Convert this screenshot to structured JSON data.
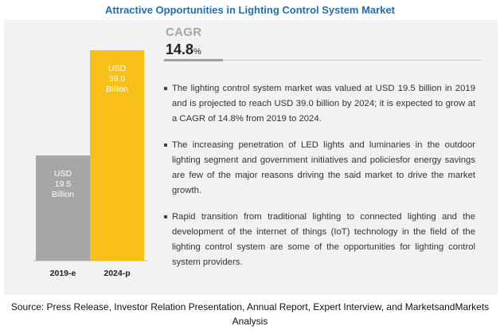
{
  "title": "Attractive Opportunities in Lighting Control System Market",
  "cagr": {
    "label": "CAGR",
    "value": "14.8",
    "unit": "%"
  },
  "bullets": [
    "The lighting control system market was valued at USD 19.5 billion in 2019 and is projected to reach USD 39.0 billion by 2024; it is expected to grow at a CAGR of 14.8% from 2019 to 2024.",
    "The increasing penetration of  LED lights and luminaries in the outdoor lighting segment and government initiatives and policiesfor energy savings are few of the major reasons driving the said market to drive the market growth.",
    "Rapid transition from traditional lighting to connected lighting and the development of the internet of things (IoT) technology in the field of the lighting control system are some of the opportunities for lighting control system providers."
  ],
  "source": "Source: Press Release, Investor Relation Presentation, Annual Report, Expert Interview, and MarketsandMarkets Analysis",
  "colors": {
    "title": "#1f6fb5",
    "bar_2019": "#a6a6a6",
    "bar_2024": "#f9c01a"
  },
  "chart_data": {
    "type": "bar",
    "categories": [
      "2019-e",
      "2024-p"
    ],
    "values": [
      19.5,
      39.0
    ],
    "data_labels": [
      [
        "USD",
        "19.5",
        "Billion"
      ],
      [
        "USD",
        "39.0",
        "Billion"
      ]
    ],
    "bar_colors": [
      "#a6a6a6",
      "#f9c01a"
    ],
    "ylim": [
      0,
      39.0
    ],
    "grid": false,
    "legend": "none"
  }
}
